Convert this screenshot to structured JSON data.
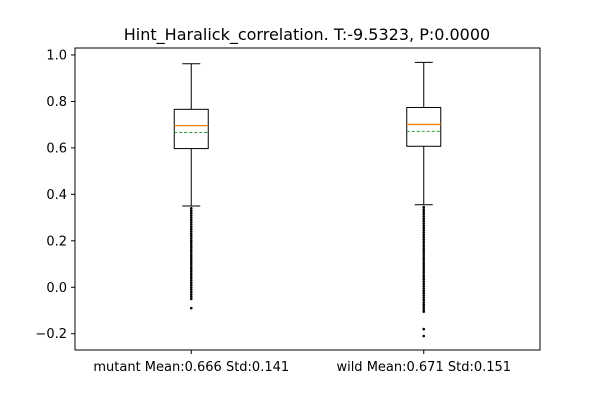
{
  "chart_data": {
    "type": "box",
    "title": "Hint_Haralick_correlation. T:-9.5323, P:0.0000",
    "xlabel": "",
    "ylabel": "",
    "ylim": [
      -0.27,
      1.03
    ],
    "yticks": [
      -0.2,
      0.0,
      0.2,
      0.4,
      0.6,
      0.8,
      1.0
    ],
    "ytick_labels": [
      "−0.2",
      "0.0",
      "0.2",
      "0.4",
      "0.6",
      "0.8",
      "1.0"
    ],
    "grid": false,
    "colors": {
      "median": "#ff7f0e",
      "mean": "#2ca02c",
      "box": "#000000",
      "outlier": "#000000"
    },
    "categories": [
      "mutant Mean:0.666 Std:0.141",
      "wild Mean:0.671 Std:0.151"
    ],
    "boxes": [
      {
        "label": "mutant Mean:0.666 Std:0.141",
        "whisker_low": 0.35,
        "q1": 0.597,
        "median": 0.696,
        "mean": 0.666,
        "q3": 0.766,
        "whisker_high": 0.962,
        "outliers": [
          0.34,
          0.33,
          0.32,
          0.31,
          0.3,
          0.29,
          0.28,
          0.27,
          0.26,
          0.25,
          0.24,
          0.23,
          0.22,
          0.21,
          0.2,
          0.19,
          0.18,
          0.17,
          0.16,
          0.15,
          0.14,
          0.13,
          0.12,
          0.11,
          0.1,
          0.09,
          0.08,
          0.07,
          0.06,
          0.05,
          0.04,
          0.03,
          0.02,
          0.01,
          0.0,
          -0.01,
          -0.02,
          -0.03,
          -0.04,
          -0.05,
          -0.09
        ]
      },
      {
        "label": "wild Mean:0.671 Std:0.151",
        "whisker_low": 0.355,
        "q1": 0.607,
        "median": 0.701,
        "mean": 0.671,
        "q3": 0.774,
        "whisker_high": 0.968,
        "outliers": [
          0.345,
          0.335,
          0.325,
          0.315,
          0.305,
          0.295,
          0.285,
          0.275,
          0.265,
          0.255,
          0.245,
          0.235,
          0.225,
          0.215,
          0.205,
          0.195,
          0.185,
          0.175,
          0.165,
          0.155,
          0.145,
          0.135,
          0.125,
          0.115,
          0.105,
          0.095,
          0.085,
          0.075,
          0.065,
          0.055,
          0.045,
          0.035,
          0.025,
          0.015,
          0.005,
          -0.005,
          -0.015,
          -0.025,
          -0.035,
          -0.045,
          -0.055,
          -0.065,
          -0.075,
          -0.085,
          -0.095,
          -0.105,
          -0.18,
          -0.21
        ]
      }
    ]
  }
}
